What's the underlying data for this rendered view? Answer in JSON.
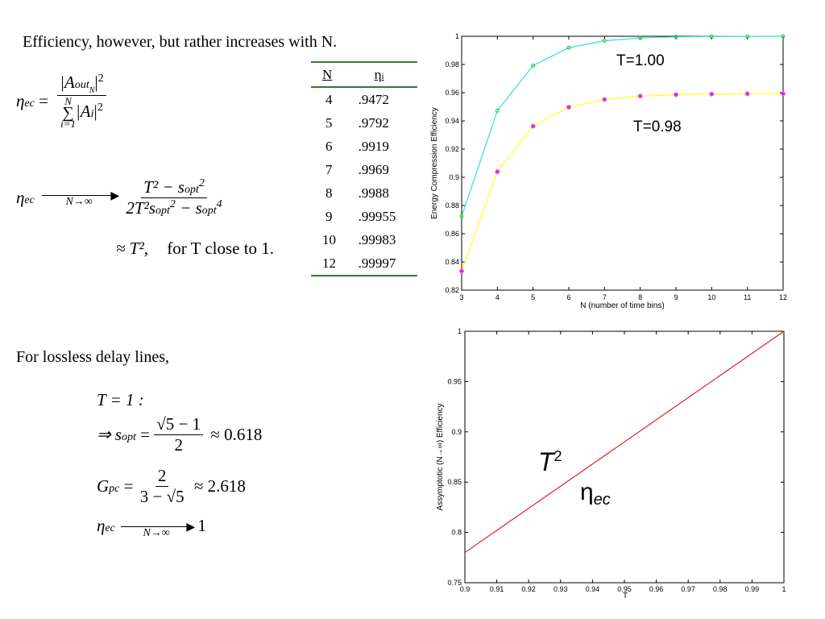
{
  "intro_text": "Efficiency, however, but rather increases with N.",
  "eq_eta_def": {
    "lhs": "η",
    "lhs_sub": "ec",
    "num": "|A",
    "num_sub": "out",
    "num_subsub": "N",
    "num_tail": "|",
    "num_sup": "2",
    "den_sum_top": "N",
    "den_sum_bottom": "i=1",
    "den_body": "|A",
    "den_sub": "i",
    "den_tail": "|",
    "den_sup": "2"
  },
  "eq_limit": {
    "lhs": "η",
    "lhs_sub": "ec",
    "arrow_label": "N→∞",
    "num": "T² − s",
    "num_sub": "opt",
    "num_sup": "2",
    "den": "2T²s",
    "den_sub1": "opt",
    "den_sup1": "2",
    "den_mid": " − s",
    "den_sub2": "opt",
    "den_sup2": "4"
  },
  "eq_approx": "≈ T²,",
  "eq_approx_tail": "for T close to 1.",
  "table": {
    "col_n": "N",
    "col_eta": "η",
    "col_eta_sub": "i",
    "rows": [
      {
        "n": "4",
        "eta": ".9472"
      },
      {
        "n": "5",
        "eta": ".9792"
      },
      {
        "n": "6",
        "eta": ".9919"
      },
      {
        "n": "7",
        "eta": ".9969"
      },
      {
        "n": "8",
        "eta": ".9988"
      },
      {
        "n": "9",
        "eta": ".99955"
      },
      {
        "n": "10",
        "eta": ".99983"
      },
      {
        "n": "12",
        "eta": ".99997"
      }
    ]
  },
  "lossless_text": "For lossless delay lines,",
  "eq_t1": "T = 1 :",
  "eq_sopt": {
    "pre": "⇒ s",
    "sub": "opt",
    "eq": " = ",
    "num": "√5 − 1",
    "den": "2",
    "post": "≈ 0.618"
  },
  "eq_gpc": {
    "pre": "G",
    "sub": "pc",
    "eq": " = ",
    "num": "2",
    "den": "3 − √5",
    "post": "≈ 2.618"
  },
  "eq_eta_limit1": {
    "lhs": "η",
    "lhs_sub": "ec",
    "arrow_label": "N→∞",
    "rhs": "1"
  },
  "colors": {
    "t100_line": "#40e0e0",
    "t098_line": "#ffff33",
    "t098_marker": "#e020e0",
    "t100_marker": "#20d020",
    "t2_line": "#e02020"
  },
  "chart_data": [
    {
      "type": "line",
      "xlabel": "N (number of time bins)",
      "ylabel": "Energy Compression Efficiency",
      "xlim": [
        3,
        12
      ],
      "ylim": [
        0.82,
        1
      ],
      "xticks": [
        "3",
        "4",
        "5",
        "6",
        "7",
        "8",
        "9",
        "10",
        "11",
        "12"
      ],
      "yticks": [
        "0.82",
        "0.84",
        "0.86",
        "0.88",
        "0.9",
        "0.92",
        "0.94",
        "0.96",
        "0.98",
        "1"
      ],
      "x": [
        3,
        4,
        5,
        6,
        7,
        8,
        9,
        10,
        11,
        12
      ],
      "grid": false,
      "series": [
        {
          "name": "T=1.00",
          "values": [
            0.8723,
            0.9472,
            0.9792,
            0.9919,
            0.9969,
            0.9988,
            0.99955,
            0.99983,
            0.9999,
            0.99997
          ]
        },
        {
          "name": "T=0.98",
          "values": [
            0.8335,
            0.904,
            0.9362,
            0.9497,
            0.9552,
            0.9576,
            0.9586,
            0.959,
            0.9592,
            0.9593
          ]
        }
      ]
    },
    {
      "type": "line",
      "xlabel": "T",
      "ylabel": "Assymptotic (N→∞) Efficiency",
      "xlim": [
        0.9,
        1
      ],
      "ylim": [
        0.75,
        1
      ],
      "xticks": [
        "0.9",
        "0.91",
        "0.92",
        "0.93",
        "0.94",
        "0.95",
        "0.96",
        "0.97",
        "0.98",
        "0.99",
        "1"
      ],
      "yticks": [
        "0.75",
        "0.8",
        "0.85",
        "0.9",
        "0.95",
        "1"
      ],
      "grid": false,
      "annotations": [
        {
          "text": "T",
          "sup": "2"
        },
        {
          "text": "η",
          "sub": "ec"
        }
      ],
      "series": [
        {
          "x": [
            0.9,
            1.0
          ],
          "values": [
            0.78,
            1.0
          ]
        }
      ]
    }
  ]
}
